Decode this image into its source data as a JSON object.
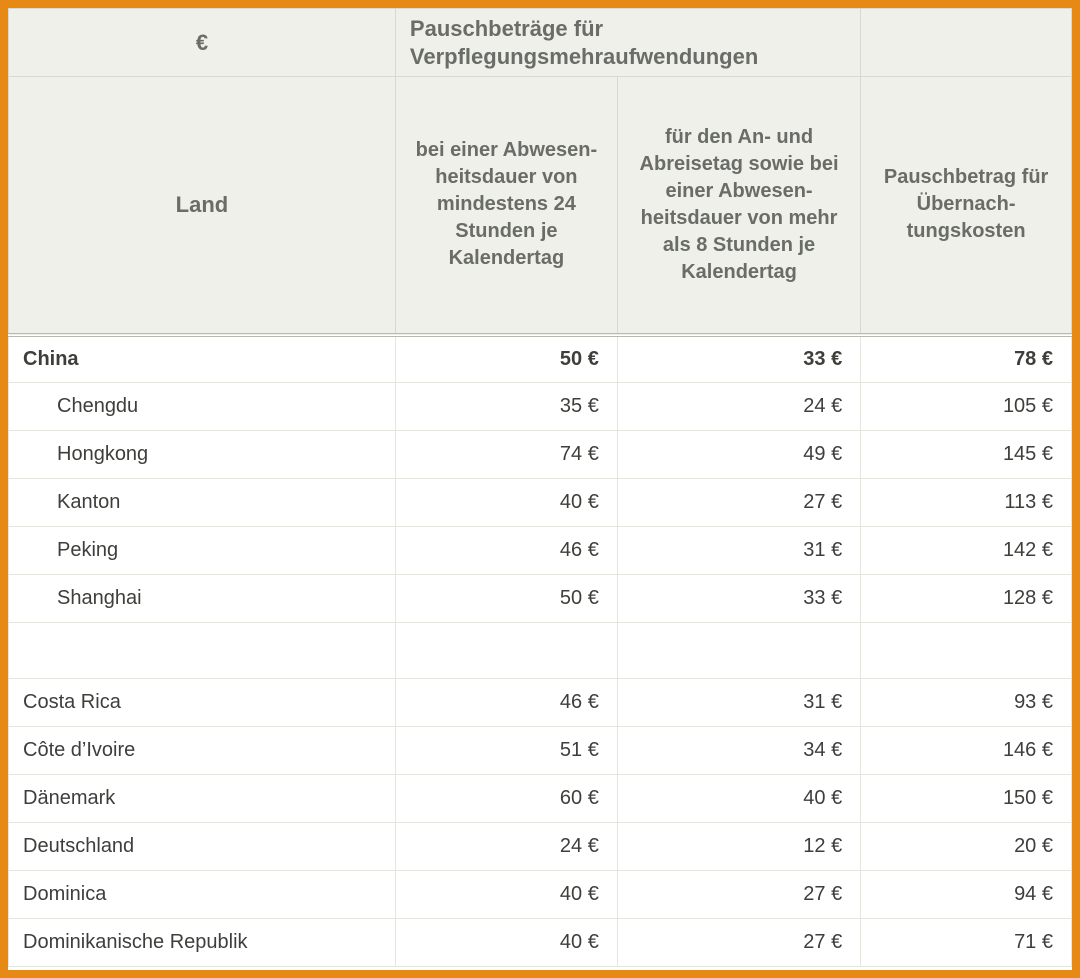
{
  "colors": {
    "frame_border": "#e78a15",
    "header_bg": "#eff0ea",
    "header_text": "#6a6c67",
    "data_text": "#3d3f3b",
    "cell_border": "#d8d9d2"
  },
  "header": {
    "euro_symbol": "€",
    "merged_title": "Pauschbeträge für Verpflegungsmehraufwendungen",
    "land": "Land",
    "col24": "bei einer Abwesen­heitsdauer von mindestens 24 Stunden je Kalendertag",
    "col8": "für den An- und Abreisetag sowie bei einer Abwesen­heitsdauer von mehr als 8 Stunden je Kalendertag",
    "overnight": "Pauschbetrag für Übernach­tungskosten"
  },
  "currency_suffix": " €",
  "rows": [
    {
      "type": "country",
      "name": "China",
      "v24": "50 €",
      "v8": "33 €",
      "vn": "78 €"
    },
    {
      "type": "city",
      "name": "Chengdu",
      "v24": "35 €",
      "v8": "24 €",
      "vn": "105 €"
    },
    {
      "type": "city",
      "name": "Hongkong",
      "v24": "74 €",
      "v8": "49 €",
      "vn": "145 €"
    },
    {
      "type": "city",
      "name": "Kanton",
      "v24": "40 €",
      "v8": "27 €",
      "vn": "113 €"
    },
    {
      "type": "city",
      "name": "Peking",
      "v24": "46 €",
      "v8": "31 €",
      "vn": "142 €"
    },
    {
      "type": "city",
      "name": "Shanghai",
      "v24": "50 €",
      "v8": "33 €",
      "vn": "128 €"
    },
    {
      "type": "spacer"
    },
    {
      "type": "country_plain",
      "name": "Costa Rica",
      "v24": "46 €",
      "v8": "31 €",
      "vn": "93 €"
    },
    {
      "type": "country_plain",
      "name": "Côte d’Ivoire",
      "v24": "51 €",
      "v8": "34 €",
      "vn": "146 €"
    },
    {
      "type": "country_plain",
      "name": "Dänemark",
      "v24": "60 €",
      "v8": "40 €",
      "vn": "150 €"
    },
    {
      "type": "country_plain",
      "name": "Deutschland",
      "v24": "24 €",
      "v8": "12 €",
      "vn": "20 €"
    },
    {
      "type": "country_plain",
      "name": "Dominica",
      "v24": "40 €",
      "v8": "27 €",
      "vn": "94 €"
    },
    {
      "type": "country_plain",
      "name": "Dominikanische Republik",
      "v24": "40 €",
      "v8": "27 €",
      "vn": "71 €"
    }
  ]
}
